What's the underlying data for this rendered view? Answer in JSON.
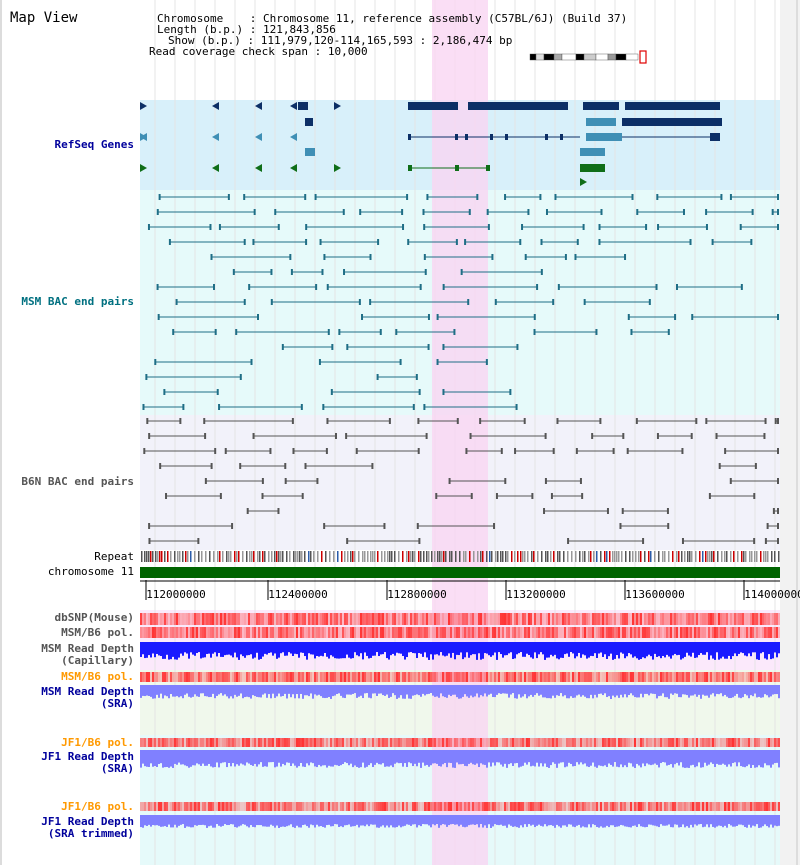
{
  "header": {
    "title": "Map View",
    "chromosome_label": "Chromosome",
    "chromosome_value": "Chromosome 11, reference assembly (C57BL/6J) (Build 37)",
    "length_label": "Length (b.p.)",
    "length_value": "121,843,856",
    "show_label": "Show (b.p.)",
    "show_value": "111,979,120-114,165,593 : 2,186,474 bp",
    "coverage_label": "Read coverage check span",
    "coverage_value": "10,000"
  },
  "tracks": {
    "refseq": "RefSeq Genes",
    "msm_bac": "MSM BAC end pairs",
    "b6n_bac": "B6N BAC end pairs",
    "repeat": "Repeat",
    "chromosome": "chromosome 11",
    "dbsnp": "dbSNP(Mouse)",
    "msm_b6_pol": "MSM/B6 pol.",
    "msm_depth_cap_1": "MSM Read Depth",
    "msm_depth_cap_2": "(Capillary)",
    "msm_b6_pol_sra": "MSM/B6 pol.",
    "msm_depth_sra_1": "MSM Read Depth",
    "msm_depth_sra_2": "(SRA)",
    "jf1_b6_pol": "JF1/B6 pol.",
    "jf1_depth_1": "JF1 Read Depth",
    "jf1_depth_2": "(SRA)",
    "jf1_b6_pol_trim": "JF1/B6 pol.",
    "jf1_trim_1": "JF1 Read Depth",
    "jf1_trim_2": "(SRA trimmed)"
  },
  "axis": {
    "ticks": [
      "112000000",
      "112400000",
      "112800000",
      "113200000",
      "113600000",
      "114000000"
    ]
  },
  "colors": {
    "highlight": "#f9d6f3",
    "refseq_bg": "#d8f0fa",
    "msm_bg": "#e6fafa",
    "b6n_bg": "#f2f2fa",
    "gene_navy": "#0c2f66",
    "gene_blue": "#3f8fb5",
    "gene_green": "#0f6e18",
    "msm_line": "#1f6e86",
    "b6n_line": "#555555",
    "chromosome_green": "#006400",
    "pol_red": "#ff3333",
    "depth_blue": "#1a1aff",
    "depth_light": "#8080ff",
    "label_navy": "#00009c",
    "label_teal": "#007080",
    "label_orange": "#ff9900",
    "label_gray": "#555555"
  }
}
